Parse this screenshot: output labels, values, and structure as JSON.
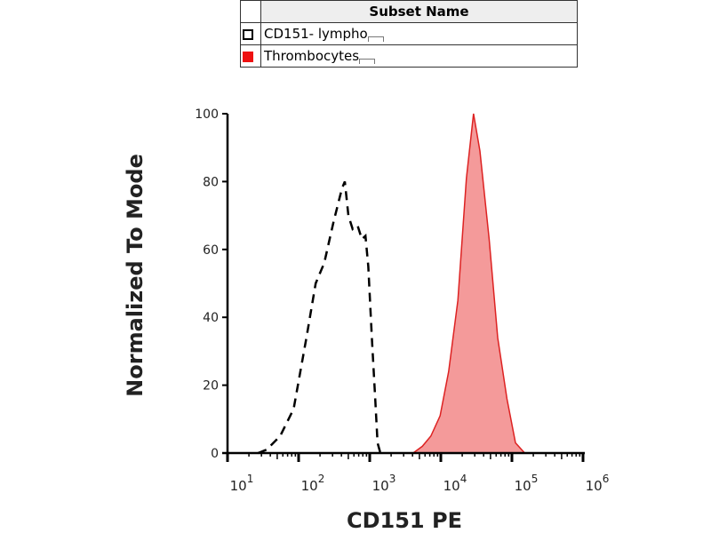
{
  "legend": {
    "header": "Subset Name",
    "items": [
      {
        "label": "CD151- lympho",
        "color": "#000000",
        "style": "dashed-outline"
      },
      {
        "label": "Thrombocytes",
        "color": "#ee1111",
        "style": "filled"
      }
    ]
  },
  "chart_data": {
    "type": "line",
    "title": "",
    "xlabel": "CD151 PE",
    "ylabel": "Normalized To Mode",
    "xscale": "log",
    "xlim_log10": [
      1,
      6
    ],
    "ylim": [
      0,
      100
    ],
    "yticks": [
      "0",
      "20",
      "40",
      "60",
      "80",
      "100"
    ],
    "xticks": [
      {
        "base": "10",
        "exp": "1"
      },
      {
        "base": "10",
        "exp": "2"
      },
      {
        "base": "10",
        "exp": "3"
      },
      {
        "base": "10",
        "exp": "4"
      },
      {
        "base": "10",
        "exp": "5"
      },
      {
        "base": "10",
        "exp": "6"
      }
    ],
    "series": [
      {
        "name": "CD151- lympho",
        "fill": "none",
        "stroke": "#000000",
        "dashed": true,
        "x_log10": [
          1.43,
          1.55,
          1.74,
          1.93,
          2.11,
          2.24,
          2.36,
          2.49,
          2.61,
          2.65,
          2.7,
          2.76,
          2.83,
          2.89,
          2.94,
          2.98,
          3.03,
          3.08,
          3.11,
          3.15
        ],
        "y": [
          0,
          1,
          5,
          13,
          34,
          50,
          56,
          68,
          78,
          80,
          70,
          66,
          67,
          63,
          64,
          55,
          34,
          15,
          3,
          0
        ]
      },
      {
        "name": "Thrombocytes",
        "fill": "#f49a9a",
        "stroke": "#dd2222",
        "dashed": false,
        "x_log10": [
          3.61,
          3.74,
          3.86,
          3.99,
          4.11,
          4.24,
          4.36,
          4.46,
          4.55,
          4.68,
          4.8,
          4.93,
          5.05,
          5.18
        ],
        "y": [
          0,
          2,
          5,
          11,
          24,
          45,
          81,
          100,
          89,
          63,
          34,
          16,
          3,
          0
        ]
      }
    ]
  }
}
